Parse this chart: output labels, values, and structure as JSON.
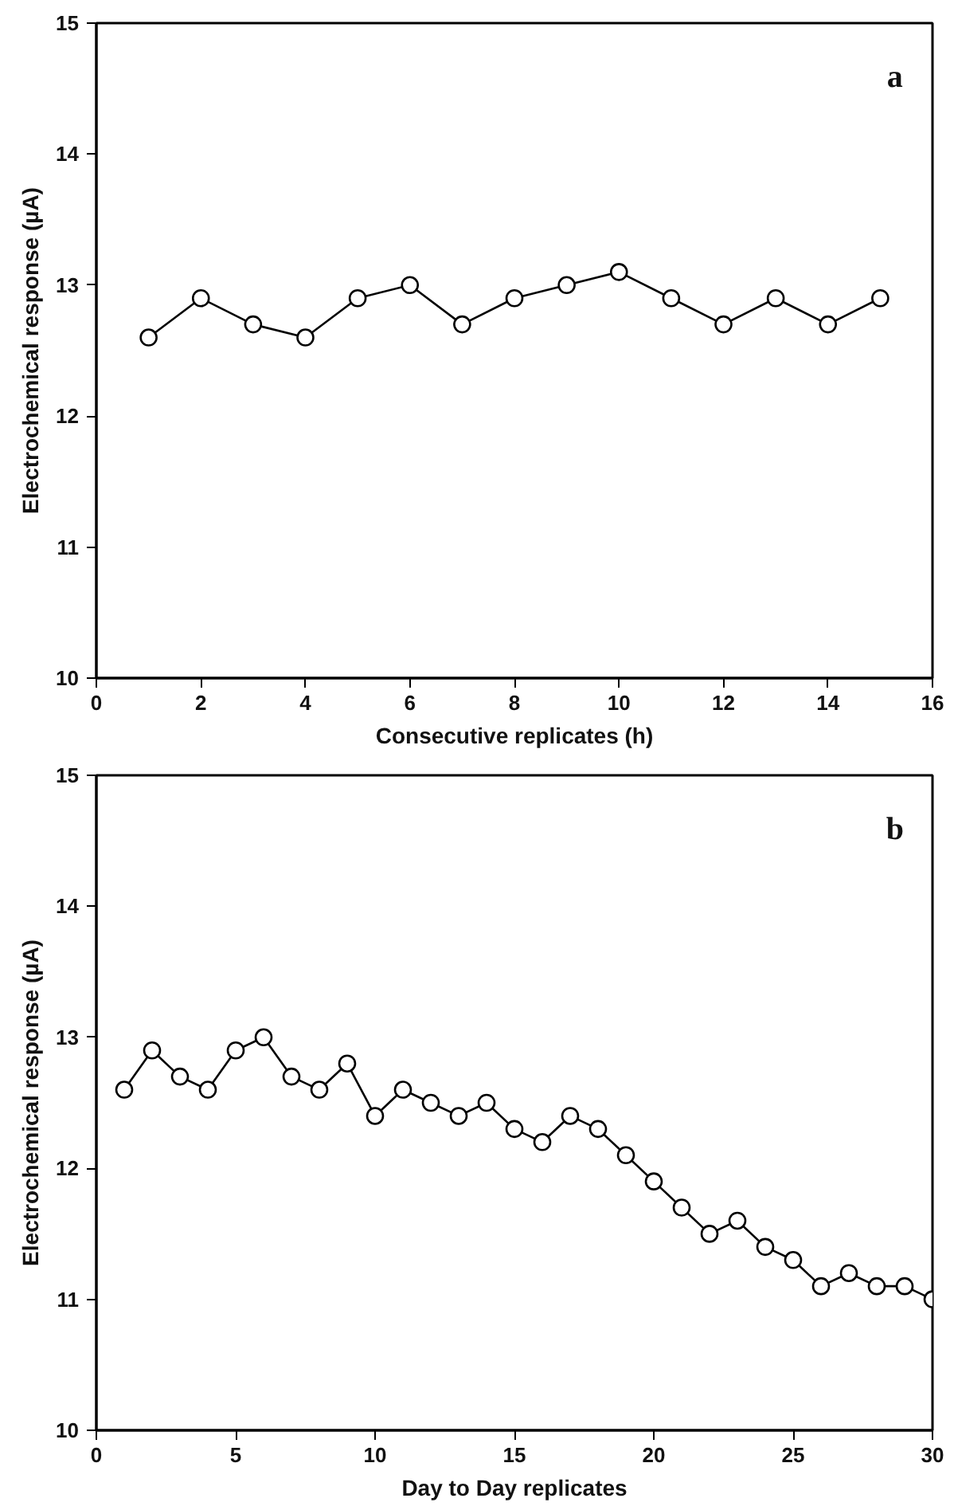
{
  "chart_data": [
    {
      "type": "line",
      "xlabel": "Consecutive replicates (h)",
      "ylabel": "Electrochemical response (µA)",
      "annotations": [
        "a"
      ],
      "x": [
        1,
        2,
        3,
        4,
        5,
        6,
        7,
        8,
        9,
        10,
        11,
        12,
        13,
        14,
        15
      ],
      "series": [
        {
          "color": "#000000",
          "values": [
            12.6,
            12.9,
            12.7,
            12.6,
            12.9,
            13.0,
            12.7,
            12.9,
            13.0,
            13.1,
            12.9,
            12.7,
            12.9,
            12.7,
            12.9
          ]
        }
      ],
      "xlim": [
        0,
        16
      ],
      "xticks": [
        0,
        2,
        4,
        6,
        8,
        10,
        12,
        14,
        16
      ],
      "ylim": [
        10,
        15
      ],
      "yticks": [
        10,
        11,
        12,
        13,
        14,
        15
      ],
      "grid": false,
      "marker": "circle",
      "line_style": "solid"
    },
    {
      "type": "line",
      "xlabel": "Day to Day replicates",
      "ylabel": "Electrochemical response (µA)",
      "annotations": [
        "b"
      ],
      "x": [
        1,
        2,
        3,
        4,
        5,
        6,
        7,
        8,
        9,
        10,
        11,
        12,
        13,
        14,
        15,
        16,
        17,
        18,
        19,
        20,
        21,
        22,
        23,
        24,
        25,
        26,
        27,
        28,
        29,
        30
      ],
      "series": [
        {
          "color": "#000000",
          "values": [
            12.6,
            12.9,
            12.7,
            12.6,
            12.9,
            13.0,
            12.7,
            12.6,
            12.8,
            12.4,
            12.6,
            12.5,
            12.4,
            12.5,
            12.3,
            12.2,
            12.4,
            12.3,
            12.1,
            11.9,
            11.7,
            11.5,
            11.6,
            11.4,
            11.3,
            11.1,
            11.2,
            11.1,
            11.1,
            11.0
          ]
        }
      ],
      "xlim": [
        0,
        30
      ],
      "xticks": [
        0,
        5,
        10,
        15,
        20,
        25,
        30
      ],
      "ylim": [
        10,
        15
      ],
      "yticks": [
        10,
        11,
        12,
        13,
        14,
        15
      ],
      "grid": false,
      "marker": "circle",
      "line_style": "solid"
    }
  ]
}
